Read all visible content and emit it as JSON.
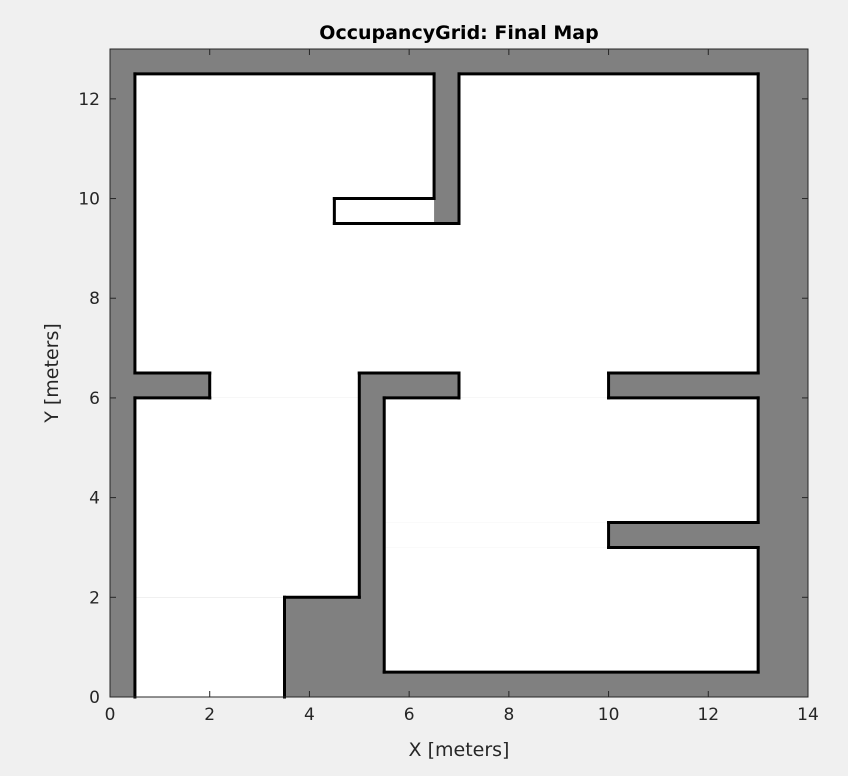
{
  "chart_data": {
    "type": "heatmap",
    "title": "OccupancyGrid: Final Map",
    "xlabel": "X [meters]",
    "ylabel": "Y [meters]",
    "xlim": [
      0,
      14
    ],
    "ylim": [
      0,
      13
    ],
    "xticks": [
      0,
      2,
      4,
      6,
      8,
      10,
      12,
      14
    ],
    "yticks": [
      0,
      2,
      4,
      6,
      8,
      10,
      12
    ],
    "grid": false,
    "colors": {
      "unknown": "#808080",
      "free": "#ffffff",
      "occupied": "#000000",
      "figure_background": "#f0f0f0"
    },
    "free_regions": [
      {
        "name": "top-left-room",
        "x0": 0.5,
        "y0": 6.5,
        "x1": 6.5,
        "y1": 12.5
      },
      {
        "name": "top-right-room",
        "x0": 7.0,
        "y0": 6.5,
        "x1": 13.0,
        "y1": 12.5
      },
      {
        "name": "top-corridor",
        "x0": 0.5,
        "y0": 6.5,
        "x1": 13.0,
        "y1": 9.5
      },
      {
        "name": "left-mid-room",
        "x0": 0.5,
        "y0": 2.0,
        "x1": 5.0,
        "y1": 6.0
      },
      {
        "name": "left-upper-link",
        "x0": 2.0,
        "y0": 6.0,
        "x1": 5.0,
        "y1": 6.5
      },
      {
        "name": "left-bottom-room",
        "x0": 0.5,
        "y0": 0.0,
        "x1": 3.5,
        "y1": 2.0
      },
      {
        "name": "right-lower-room",
        "x0": 5.5,
        "y0": 3.5,
        "x1": 13.0,
        "y1": 6.0
      },
      {
        "name": "right-passage",
        "x0": 7.0,
        "y0": 6.0,
        "x1": 10.0,
        "y1": 6.5
      },
      {
        "name": "bottom-room",
        "x0": 5.5,
        "y0": 0.5,
        "x1": 13.0,
        "y1": 3.0
      },
      {
        "name": "bottom-link",
        "x0": 5.5,
        "y0": 3.0,
        "x1": 10.0,
        "y1": 3.5
      }
    ],
    "occupied_edges": [
      {
        "x0": 0.5,
        "y0": 12.5,
        "x1": 6.5,
        "y1": 12.5
      },
      {
        "x0": 7.0,
        "y0": 12.5,
        "x1": 13.0,
        "y1": 12.5
      },
      {
        "x0": 6.5,
        "y0": 10.0,
        "x1": 6.5,
        "y1": 12.5
      },
      {
        "x0": 7.0,
        "y0": 9.5,
        "x1": 7.0,
        "y1": 12.5
      },
      {
        "x0": 4.5,
        "y0": 10.0,
        "x1": 6.5,
        "y1": 10.0
      },
      {
        "x0": 4.5,
        "y0": 9.5,
        "x1": 7.0,
        "y1": 9.5
      },
      {
        "x0": 4.5,
        "y0": 9.5,
        "x1": 4.5,
        "y1": 10.0
      },
      {
        "x0": 0.5,
        "y0": 6.5,
        "x1": 0.5,
        "y1": 12.5
      },
      {
        "x0": 13.0,
        "y0": 6.5,
        "x1": 13.0,
        "y1": 12.5
      },
      {
        "x0": 0.5,
        "y0": 6.5,
        "x1": 2.0,
        "y1": 6.5
      },
      {
        "x0": 0.5,
        "y0": 6.0,
        "x1": 2.0,
        "y1": 6.0
      },
      {
        "x0": 2.0,
        "y0": 6.0,
        "x1": 2.0,
        "y1": 6.5
      },
      {
        "x0": 5.0,
        "y0": 6.5,
        "x1": 7.0,
        "y1": 6.5
      },
      {
        "x0": 5.5,
        "y0": 6.0,
        "x1": 7.0,
        "y1": 6.0
      },
      {
        "x0": 7.0,
        "y0": 6.0,
        "x1": 7.0,
        "y1": 6.5
      },
      {
        "x0": 10.0,
        "y0": 6.5,
        "x1": 13.0,
        "y1": 6.5
      },
      {
        "x0": 10.0,
        "y0": 6.0,
        "x1": 13.0,
        "y1": 6.0
      },
      {
        "x0": 10.0,
        "y0": 6.0,
        "x1": 10.0,
        "y1": 6.5
      },
      {
        "x0": 5.0,
        "y0": 2.0,
        "x1": 5.0,
        "y1": 6.5
      },
      {
        "x0": 5.5,
        "y0": 0.5,
        "x1": 5.5,
        "y1": 6.0
      },
      {
        "x0": 0.5,
        "y0": 0.0,
        "x1": 0.5,
        "y1": 6.0
      },
      {
        "x0": 3.5,
        "y0": 2.0,
        "x1": 5.0,
        "y1": 2.0
      },
      {
        "x0": 3.5,
        "y0": 0.0,
        "x1": 3.5,
        "y1": 2.0
      },
      {
        "x0": 13.0,
        "y0": 3.5,
        "x1": 13.0,
        "y1": 6.0
      },
      {
        "x0": 10.0,
        "y0": 3.5,
        "x1": 13.0,
        "y1": 3.5
      },
      {
        "x0": 10.0,
        "y0": 3.0,
        "x1": 13.0,
        "y1": 3.0
      },
      {
        "x0": 10.0,
        "y0": 3.0,
        "x1": 10.0,
        "y1": 3.5
      },
      {
        "x0": 13.0,
        "y0": 0.5,
        "x1": 13.0,
        "y1": 3.0
      },
      {
        "x0": 5.5,
        "y0": 0.5,
        "x1": 13.0,
        "y1": 0.5
      }
    ]
  }
}
